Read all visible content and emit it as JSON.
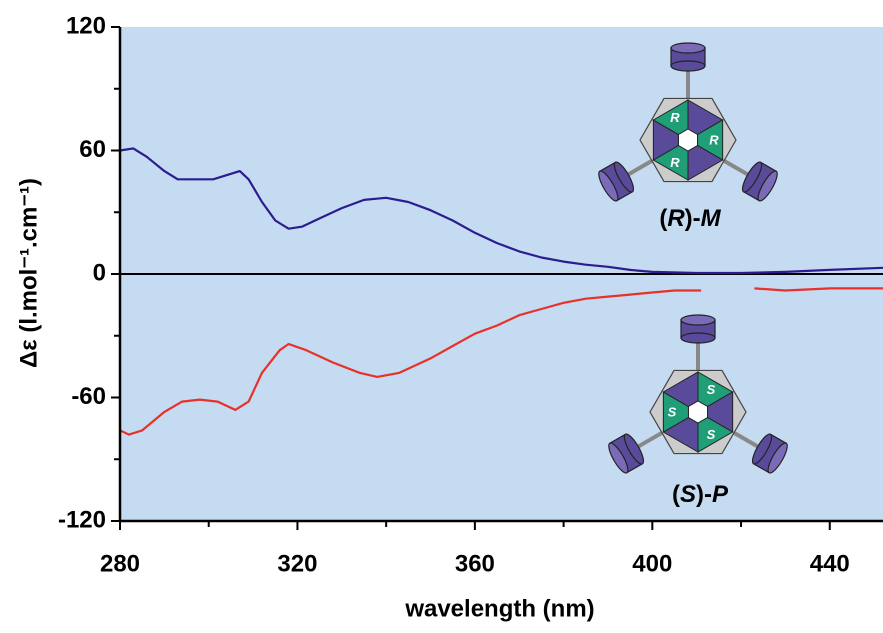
{
  "chart_data": {
    "type": "line",
    "xlabel": "wavelength (nm)",
    "ylabel": "Δε (l.mol⁻¹.cm⁻¹)",
    "xlim": [
      280,
      452
    ],
    "ylim": [
      -120,
      120
    ],
    "xticks": [
      280,
      320,
      360,
      400,
      440
    ],
    "yticks": [
      -120,
      -60,
      0,
      60,
      120
    ],
    "xminor": [
      300,
      340,
      380,
      420
    ],
    "yminor": [
      -90,
      -30,
      30,
      90
    ],
    "hline": 0,
    "background": "#c5dbf1",
    "series": [
      {
        "color": "#2b1d8f",
        "x": [
          280,
          283,
          286,
          290,
          293,
          297,
          301,
          304,
          307,
          309,
          312,
          315,
          318,
          321,
          325,
          330,
          335,
          340,
          345,
          350,
          355,
          360,
          365,
          370,
          375,
          380,
          385,
          390,
          395,
          400,
          410,
          420,
          430,
          440,
          452
        ],
        "values": [
          60,
          61,
          57,
          50,
          46,
          46,
          46,
          48,
          50,
          46,
          35,
          26,
          22,
          23,
          27,
          32,
          36,
          37,
          35,
          31,
          26,
          20,
          15,
          11,
          8,
          6,
          4.5,
          3.5,
          2,
          1,
          0.5,
          0.5,
          1,
          2,
          3
        ]
      },
      {
        "color": "#e8312a",
        "x": [
          280,
          282,
          285,
          290,
          294,
          298,
          302,
          306,
          309,
          312,
          316,
          318,
          322,
          328,
          334,
          338,
          343,
          350,
          355,
          360,
          365,
          370,
          375,
          380,
          385,
          390,
          395,
          400,
          405,
          411,
          417,
          423,
          430,
          440,
          452
        ],
        "values": [
          -76,
          -78,
          -76,
          -67,
          -62,
          -61,
          -62,
          -66,
          -62,
          -48,
          -37,
          -34,
          -37,
          -43,
          -48,
          -50,
          -48,
          -41,
          -35,
          -29,
          -25,
          -20,
          -17,
          -14,
          -12,
          -11,
          -10,
          -9,
          -8,
          -8,
          null,
          -7,
          -8,
          -7,
          -7
        ]
      }
    ],
    "annotations": [
      {
        "parts": [
          "(",
          "R",
          ")-",
          "M"
        ],
        "letter": "R"
      },
      {
        "parts": [
          "(",
          "S",
          ")-",
          "P"
        ],
        "letter": "S"
      }
    ]
  }
}
